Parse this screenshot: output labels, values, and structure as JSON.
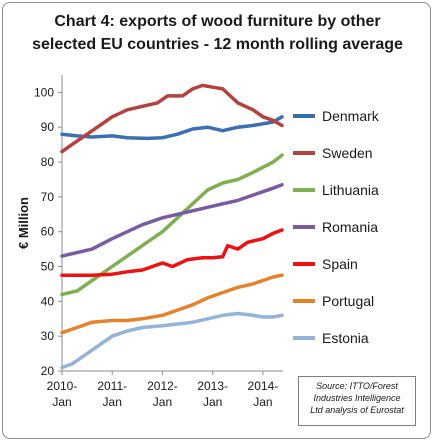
{
  "chart_data": {
    "type": "line",
    "title_lines": [
      "Chart 4: exports of wood furniture by other",
      "selected EU countries - 12 month rolling average"
    ],
    "ylabel": "€ Million",
    "xlabel": "",
    "ylim": [
      20,
      105
    ],
    "yticks": [
      20,
      30,
      40,
      50,
      60,
      70,
      80,
      90,
      100
    ],
    "xlim": [
      2010,
      2014.4
    ],
    "xticks": [
      {
        "value": 2010,
        "line1": "2010-",
        "line2": "Jan"
      },
      {
        "value": 2011,
        "line1": "2011-",
        "line2": "Jan"
      },
      {
        "value": 2012,
        "line1": "2012-",
        "line2": "Jan"
      },
      {
        "value": 2013,
        "line1": "2013-",
        "line2": "Jan"
      },
      {
        "value": 2014,
        "line1": "2014-",
        "line2": "Jan"
      }
    ],
    "grid": false,
    "legend_position": "right",
    "series": [
      {
        "name": "Denmark",
        "color": "#3a6fb5",
        "points": [
          [
            2010,
            88
          ],
          [
            2010.3,
            87.5
          ],
          [
            2010.6,
            87.2
          ],
          [
            2011,
            87.5
          ],
          [
            2011.3,
            87
          ],
          [
            2011.7,
            86.8
          ],
          [
            2012,
            87
          ],
          [
            2012.3,
            88
          ],
          [
            2012.6,
            89.5
          ],
          [
            2012.9,
            90
          ],
          [
            2013.2,
            89
          ],
          [
            2013.5,
            90
          ],
          [
            2013.8,
            90.5
          ],
          [
            2014,
            91
          ],
          [
            2014.2,
            91.5
          ],
          [
            2014.38,
            93
          ]
        ]
      },
      {
        "name": "Sweden",
        "color": "#b5413e",
        "points": [
          [
            2010,
            83
          ],
          [
            2010.2,
            85
          ],
          [
            2010.5,
            88
          ],
          [
            2010.8,
            91
          ],
          [
            2011,
            93
          ],
          [
            2011.3,
            95
          ],
          [
            2011.6,
            96
          ],
          [
            2011.9,
            97
          ],
          [
            2012.1,
            99
          ],
          [
            2012.4,
            99
          ],
          [
            2012.6,
            101
          ],
          [
            2012.8,
            102
          ],
          [
            2013,
            101.5
          ],
          [
            2013.2,
            101
          ],
          [
            2013.5,
            97
          ],
          [
            2013.8,
            95
          ],
          [
            2014,
            93
          ],
          [
            2014.2,
            92
          ],
          [
            2014.38,
            90.5
          ]
        ]
      },
      {
        "name": "Lithuania",
        "color": "#7fb050",
        "points": [
          [
            2010,
            42
          ],
          [
            2010.3,
            43
          ],
          [
            2010.6,
            46
          ],
          [
            2011,
            50
          ],
          [
            2011.3,
            53
          ],
          [
            2011.6,
            56
          ],
          [
            2012,
            60
          ],
          [
            2012.3,
            64
          ],
          [
            2012.6,
            68
          ],
          [
            2012.9,
            72
          ],
          [
            2013.2,
            74
          ],
          [
            2013.5,
            75
          ],
          [
            2013.8,
            77
          ],
          [
            2014,
            78.5
          ],
          [
            2014.2,
            80
          ],
          [
            2014.38,
            82
          ]
        ]
      },
      {
        "name": "Romania",
        "color": "#7a5aa2",
        "points": [
          [
            2010,
            53
          ],
          [
            2010.3,
            54
          ],
          [
            2010.6,
            55
          ],
          [
            2011,
            58
          ],
          [
            2011.3,
            60
          ],
          [
            2011.6,
            62
          ],
          [
            2012,
            64
          ],
          [
            2012.3,
            65
          ],
          [
            2012.6,
            66
          ],
          [
            2012.9,
            67
          ],
          [
            2013.2,
            68
          ],
          [
            2013.5,
            69
          ],
          [
            2013.8,
            70.5
          ],
          [
            2014,
            71.5
          ],
          [
            2014.2,
            72.5
          ],
          [
            2014.38,
            73.5
          ]
        ]
      },
      {
        "name": "Spain",
        "color": "#ee1111",
        "points": [
          [
            2010,
            47.5
          ],
          [
            2010.3,
            47.5
          ],
          [
            2010.6,
            47.5
          ],
          [
            2011,
            47.8
          ],
          [
            2011.3,
            48.5
          ],
          [
            2011.6,
            49
          ],
          [
            2012,
            51
          ],
          [
            2012.2,
            50
          ],
          [
            2012.5,
            52
          ],
          [
            2012.8,
            52.5
          ],
          [
            2013,
            52.5
          ],
          [
            2013.2,
            52.8
          ],
          [
            2013.3,
            56
          ],
          [
            2013.5,
            55
          ],
          [
            2013.7,
            57
          ],
          [
            2014,
            58
          ],
          [
            2014.2,
            59.5
          ],
          [
            2014.38,
            60.5
          ]
        ]
      },
      {
        "name": "Portugal",
        "color": "#e8822a",
        "points": [
          [
            2010,
            31
          ],
          [
            2010.3,
            32.5
          ],
          [
            2010.6,
            34
          ],
          [
            2011,
            34.5
          ],
          [
            2011.3,
            34.5
          ],
          [
            2011.6,
            35
          ],
          [
            2012,
            36
          ],
          [
            2012.3,
            37.5
          ],
          [
            2012.6,
            39
          ],
          [
            2012.9,
            41
          ],
          [
            2013.2,
            42.5
          ],
          [
            2013.5,
            44
          ],
          [
            2013.8,
            45
          ],
          [
            2014,
            46
          ],
          [
            2014.2,
            47
          ],
          [
            2014.38,
            47.5
          ]
        ]
      },
      {
        "name": "Estonia",
        "color": "#94b3d8",
        "points": [
          [
            2010,
            21
          ],
          [
            2010.2,
            22
          ],
          [
            2010.5,
            25
          ],
          [
            2010.8,
            28
          ],
          [
            2011,
            30
          ],
          [
            2011.3,
            31.5
          ],
          [
            2011.6,
            32.5
          ],
          [
            2012,
            33
          ],
          [
            2012.3,
            33.5
          ],
          [
            2012.6,
            34
          ],
          [
            2012.9,
            35
          ],
          [
            2013.2,
            36
          ],
          [
            2013.5,
            36.5
          ],
          [
            2013.8,
            36
          ],
          [
            2014,
            35.5
          ],
          [
            2014.2,
            35.5
          ],
          [
            2014.38,
            36
          ]
        ]
      }
    ]
  },
  "source_note": [
    "Source: ITTO/Forest",
    "Industries Intelligence",
    "Ltd analysis of Eurostat"
  ]
}
